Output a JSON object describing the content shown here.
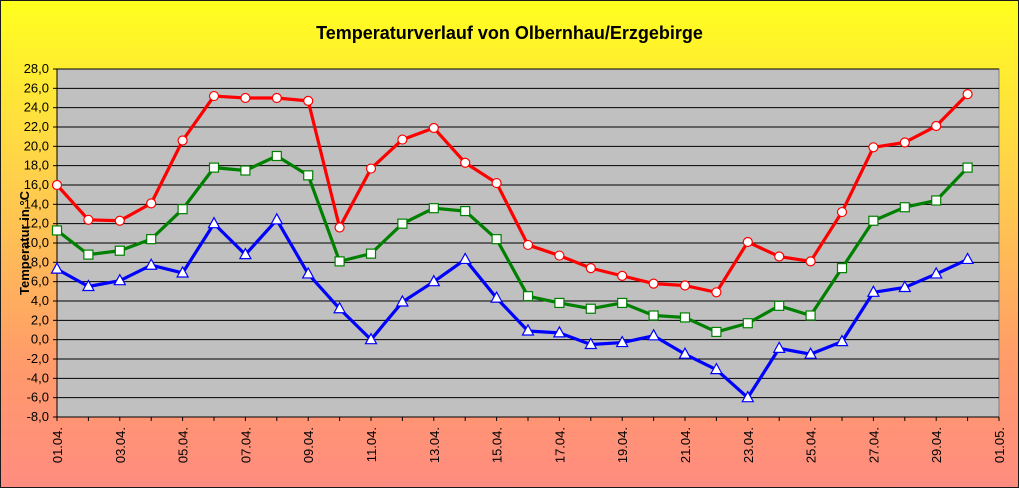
{
  "chart_data": {
    "type": "line",
    "title": "Temperaturverlauf von Olbernhau/Erzgebirge",
    "ylabel": "Temperatur in °C",
    "xlabel": "",
    "ylim": [
      -8,
      28
    ],
    "y_ticks": [
      "-8,0",
      "-6,0",
      "-4,0",
      "-2,0",
      "0,0",
      "2,0",
      "4,0",
      "6,0",
      "8,0",
      "10,0",
      "12,0",
      "14,0",
      "16,0",
      "18,0",
      "20,0",
      "22,0",
      "24,0",
      "26,0",
      "28,0"
    ],
    "x_ticks": [
      "01.04.",
      "03.04.",
      "05.04.",
      "07.04.",
      "09.04.",
      "11.04.",
      "13.04.",
      "15.04.",
      "17.04.",
      "19.04.",
      "21.04.",
      "23.04.",
      "25.04.",
      "27.04.",
      "29.04.",
      "01.05."
    ],
    "x": [
      "01.04.",
      "02.04.",
      "03.04.",
      "04.04.",
      "05.04.",
      "06.04.",
      "07.04.",
      "08.04.",
      "09.04.",
      "10.04.",
      "11.04.",
      "12.04.",
      "13.04.",
      "14.04.",
      "15.04.",
      "16.04.",
      "17.04.",
      "18.04.",
      "19.04.",
      "20.04.",
      "21.04.",
      "22.04.",
      "23.04.",
      "24.04.",
      "25.04.",
      "26.04.",
      "27.04.",
      "28.04.",
      "29.04.",
      "30.04."
    ],
    "grid": true,
    "legend": "none",
    "series": [
      {
        "color": "#ff0000",
        "marker": "circle",
        "values": [
          16.0,
          12.4,
          12.3,
          14.1,
          20.6,
          25.2,
          25.0,
          25.0,
          24.7,
          11.6,
          17.7,
          20.7,
          21.9,
          18.3,
          16.2,
          9.8,
          8.7,
          7.4,
          6.6,
          5.8,
          5.6,
          4.9,
          10.1,
          8.6,
          8.1,
          13.2,
          19.9,
          20.4,
          22.1,
          25.4
        ]
      },
      {
        "color": "#008000",
        "marker": "square",
        "values": [
          11.3,
          8.8,
          9.2,
          10.4,
          13.5,
          17.8,
          17.5,
          19.0,
          17.0,
          8.1,
          8.9,
          12.0,
          13.6,
          13.3,
          10.4,
          4.5,
          3.8,
          3.2,
          3.8,
          2.5,
          2.3,
          0.8,
          1.7,
          3.5,
          2.5,
          7.4,
          12.3,
          13.7,
          14.4,
          17.8
        ]
      },
      {
        "color": "#0000ff",
        "marker": "triangle",
        "values": [
          7.3,
          5.5,
          6.1,
          7.7,
          6.9,
          12.0,
          8.8,
          12.4,
          6.8,
          3.2,
          0.0,
          3.9,
          6.0,
          8.3,
          4.3,
          0.9,
          0.7,
          -0.5,
          -0.3,
          0.4,
          -1.5,
          -3.1,
          -6.0,
          -0.9,
          -1.5,
          -0.2,
          4.9,
          5.4,
          6.8,
          8.3
        ]
      }
    ]
  }
}
